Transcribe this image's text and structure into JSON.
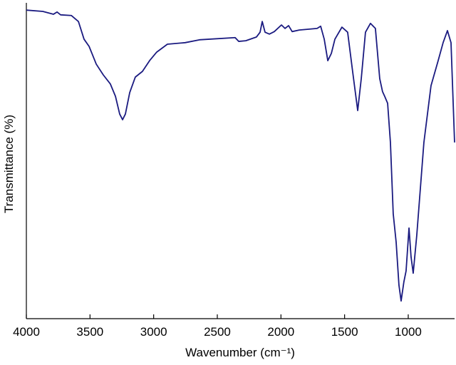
{
  "chart_data": {
    "type": "line",
    "xlabel": "Wavenumber (cm⁻¹)",
    "ylabel": "Transmittance (%)",
    "xlim": [
      4000,
      636
    ],
    "xticks": [
      4000,
      3500,
      3000,
      2500,
      2000,
      1500,
      1000
    ],
    "ylim": [
      0,
      100
    ],
    "reverse_x": true,
    "series": [
      {
        "color": "#1a1a80",
        "x": [
          4000,
          3871,
          3787,
          3759,
          3731,
          3647,
          3591,
          3547,
          3507,
          3451,
          3396,
          3340,
          3300,
          3267,
          3244,
          3222,
          3188,
          3144,
          3088,
          3032,
          2976,
          2892,
          2752,
          2640,
          2360,
          2332,
          2276,
          2192,
          2164,
          2147,
          2125,
          2091,
          2052,
          1996,
          1968,
          1940,
          1912,
          1856,
          1716,
          1688,
          1660,
          1632,
          1604,
          1576,
          1521,
          1476,
          1437,
          1397,
          1369,
          1336,
          1297,
          1258,
          1224,
          1202,
          1185,
          1162,
          1140,
          1118,
          1095,
          1073,
          1056,
          1034,
          1017,
          994,
          978,
          961,
          933,
          877,
          821,
          765,
          726,
          692,
          664,
          636
        ],
        "values": [
          97.7,
          97.3,
          96.4,
          97.1,
          96.2,
          96.0,
          94.1,
          88.5,
          86.2,
          80.6,
          77.2,
          74.3,
          70.4,
          64.8,
          63.0,
          64.8,
          71.6,
          76.5,
          78.3,
          81.7,
          84.4,
          86.9,
          87.4,
          88.3,
          89.0,
          87.8,
          88.0,
          89.2,
          90.7,
          94.1,
          90.7,
          90.1,
          90.9,
          93.0,
          91.9,
          92.8,
          90.9,
          91.4,
          91.9,
          92.6,
          88.5,
          81.7,
          84.0,
          88.5,
          92.3,
          90.7,
          78.3,
          65.9,
          76.0,
          90.7,
          93.5,
          91.9,
          76.0,
          71.9,
          70.4,
          68.2,
          55.8,
          33.2,
          24.2,
          10.6,
          5.6,
          11.7,
          15.1,
          28.7,
          19.6,
          14.4,
          26.4,
          55.8,
          73.8,
          81.7,
          87.4,
          91.2,
          87.4,
          55.8
        ]
      }
    ]
  }
}
